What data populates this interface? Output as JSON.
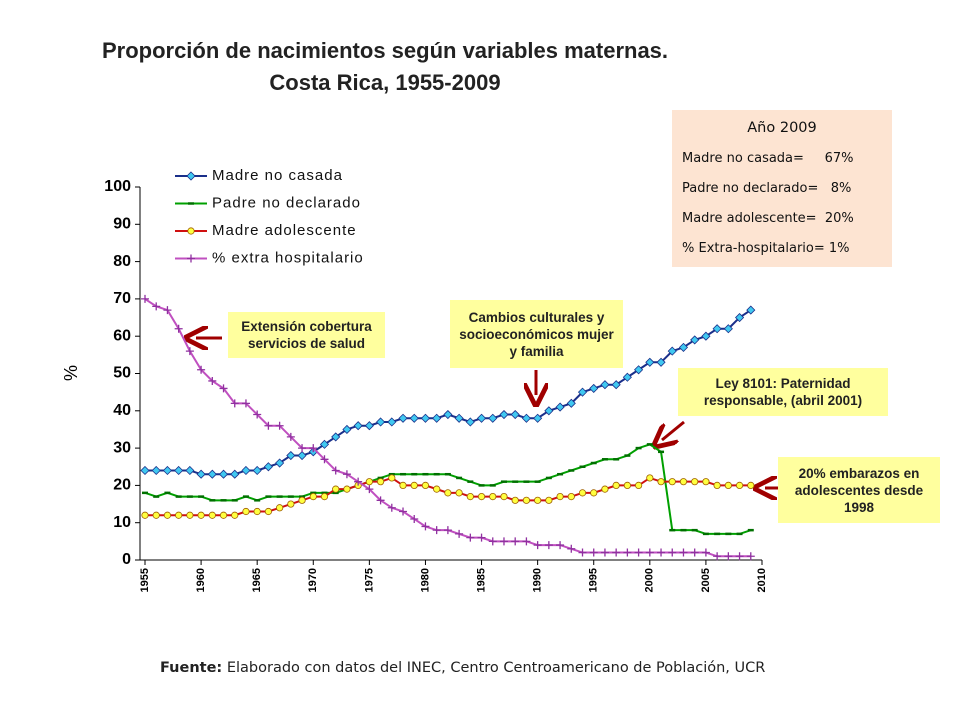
{
  "chart_data": {
    "type": "line",
    "title": "Proporción de nacimientos según variables maternas.",
    "subtitle": "Costa Rica, 1955-2009",
    "y_label": "%",
    "x": [
      1955,
      1956,
      1957,
      1958,
      1959,
      1960,
      1961,
      1962,
      1963,
      1964,
      1965,
      1966,
      1967,
      1968,
      1969,
      1970,
      1971,
      1972,
      1973,
      1974,
      1975,
      1976,
      1977,
      1978,
      1979,
      1980,
      1981,
      1982,
      1983,
      1984,
      1985,
      1986,
      1987,
      1988,
      1989,
      1990,
      1991,
      1992,
      1993,
      1994,
      1995,
      1996,
      1997,
      1998,
      1999,
      2000,
      2001,
      2002,
      2003,
      2004,
      2005,
      2006,
      2007,
      2008,
      2009
    ],
    "xlim": [
      1955,
      2010
    ],
    "xticks": [
      1955,
      1960,
      1965,
      1970,
      1975,
      1980,
      1985,
      1990,
      1995,
      2000,
      2005,
      2010
    ],
    "ylim": [
      0,
      100
    ],
    "yticks": [
      0,
      10,
      20,
      30,
      40,
      50,
      60,
      70,
      80,
      90,
      100
    ],
    "legend": "upper left",
    "series": [
      {
        "name": "Madre no casada",
        "color": "#1a2f8a",
        "marker": "diamond",
        "marker_color": "#40c8f0",
        "values": [
          24,
          24,
          24,
          24,
          24,
          23,
          23,
          23,
          23,
          24,
          24,
          25,
          26,
          28,
          28,
          29,
          31,
          33,
          35,
          36,
          36,
          37,
          37,
          38,
          38,
          38,
          38,
          39,
          38,
          37,
          38,
          38,
          39,
          39,
          38,
          38,
          40,
          41,
          42,
          45,
          46,
          47,
          47,
          49,
          51,
          53,
          53,
          56,
          57,
          59,
          60,
          62,
          62,
          65,
          67
        ]
      },
      {
        "name": "Padre no declarado",
        "color": "#00a000",
        "marker": "dash",
        "marker_color": "#007000",
        "values": [
          18,
          17,
          18,
          17,
          17,
          17,
          16,
          16,
          16,
          17,
          16,
          17,
          17,
          17,
          17,
          18,
          18,
          18,
          19,
          20,
          21,
          22,
          23,
          23,
          23,
          23,
          23,
          23,
          22,
          21,
          20,
          20,
          21,
          21,
          21,
          21,
          22,
          23,
          24,
          25,
          26,
          27,
          27,
          28,
          30,
          31,
          29,
          8,
          8,
          8,
          7,
          7,
          7,
          7,
          8
        ]
      },
      {
        "name": "Madre adolescente",
        "color": "#d01010",
        "marker": "circle",
        "marker_color": "#ffff40",
        "values": [
          12,
          12,
          12,
          12,
          12,
          12,
          12,
          12,
          12,
          13,
          13,
          13,
          14,
          15,
          16,
          17,
          17,
          19,
          19,
          20,
          21,
          21,
          22,
          20,
          20,
          20,
          19,
          18,
          18,
          17,
          17,
          17,
          17,
          16,
          16,
          16,
          16,
          17,
          17,
          18,
          18,
          19,
          20,
          20,
          20,
          22,
          21,
          21,
          21,
          21,
          21,
          20,
          20,
          20,
          20
        ]
      },
      {
        "name": "% extra hospitalario",
        "color": "#c050c0",
        "marker": "plus",
        "marker_color": "#9030a0",
        "values": [
          70,
          68,
          67,
          62,
          56,
          51,
          48,
          46,
          42,
          42,
          39,
          36,
          36,
          33,
          30,
          30,
          27,
          24,
          23,
          21,
          19,
          16,
          14,
          13,
          11,
          9,
          8,
          8,
          7,
          6,
          6,
          5,
          5,
          5,
          5,
          4,
          4,
          4,
          3,
          2,
          2,
          2,
          2,
          2,
          2,
          2,
          2,
          2,
          2,
          2,
          2,
          1,
          1,
          1,
          1
        ]
      }
    ],
    "annotations": [
      "Extensión cobertura servicios de salud",
      "Cambios culturales y socioeconómicos mujer y familia",
      "Ley 8101: Paternidad responsable, (abril 2001)",
      "20%  embarazos en adolescentes desde 1998"
    ]
  },
  "info_box": {
    "title": "Año 2009",
    "rows": [
      "Madre no casada=     67%",
      "Padre no declarado=   8%",
      "Madre adolescente=  20%",
      "% Extra-hospitalario= 1%"
    ]
  },
  "footer": {
    "label": "Fuente:",
    "text": " Elaborado con datos del INEC, Centro Centroamericano de Población, UCR"
  }
}
